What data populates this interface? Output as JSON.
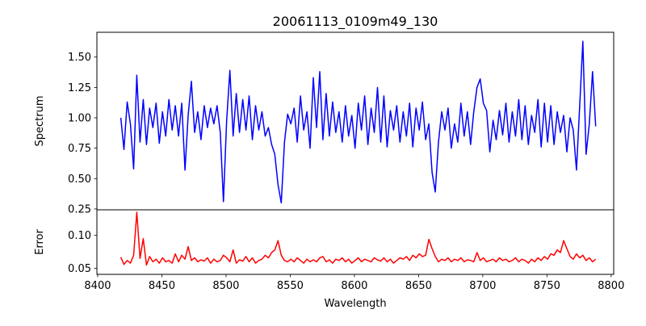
{
  "chart_data": [
    {
      "type": "line",
      "title": "20061113_0109m49_130",
      "ylabel": "Spectrum",
      "xlabel": "",
      "xlim": [
        8399.4,
        8802
      ],
      "ylim": [
        0.243,
        1.704
      ],
      "yticks": [
        0.25,
        0.5,
        0.75,
        1.0,
        1.25,
        1.5
      ],
      "ytick_labels": [
        "0.25",
        "0.50",
        "0.75",
        "1.00",
        "1.25",
        "1.50"
      ],
      "grid": false,
      "series": [
        {
          "name": "spectrum",
          "color": "#0000ff",
          "x_start": 8418,
          "x_step": 2.5,
          "values": [
            1.0,
            0.74,
            1.13,
            0.95,
            0.58,
            1.35,
            0.8,
            1.15,
            0.78,
            1.08,
            0.92,
            1.12,
            0.79,
            1.05,
            0.85,
            1.15,
            0.9,
            1.1,
            0.85,
            1.12,
            0.57,
            1.02,
            1.3,
            0.88,
            1.05,
            0.82,
            1.1,
            0.92,
            1.08,
            0.95,
            1.1,
            0.88,
            0.31,
            0.98,
            1.39,
            0.85,
            1.2,
            0.88,
            1.15,
            0.9,
            1.18,
            0.82,
            1.1,
            0.9,
            1.05,
            0.85,
            0.92,
            0.78,
            0.7,
            0.45,
            0.3,
            0.8,
            1.03,
            0.95,
            1.08,
            0.8,
            1.18,
            0.9,
            1.05,
            0.75,
            1.33,
            0.92,
            1.38,
            0.82,
            1.2,
            0.85,
            1.13,
            0.88,
            1.05,
            0.8,
            1.1,
            0.85,
            1.02,
            0.75,
            1.12,
            0.9,
            1.18,
            0.78,
            1.08,
            0.88,
            1.25,
            0.8,
            1.18,
            0.76,
            1.06,
            0.9,
            1.1,
            0.8,
            1.05,
            0.85,
            1.12,
            0.76,
            1.08,
            0.9,
            1.13,
            0.82,
            0.95,
            0.55,
            0.39,
            0.8,
            1.05,
            0.9,
            1.08,
            0.75,
            0.95,
            0.8,
            1.12,
            0.85,
            1.05,
            0.78,
            1.05,
            1.25,
            1.32,
            1.12,
            1.06,
            0.72,
            0.98,
            0.82,
            1.06,
            0.86,
            1.12,
            0.8,
            1.05,
            0.85,
            1.15,
            0.82,
            1.1,
            0.78,
            1.02,
            0.88,
            1.15,
            0.76,
            1.12,
            0.8,
            1.1,
            0.78,
            1.05,
            0.88,
            1.02,
            0.72,
            1.0,
            0.9,
            0.57,
            1.1,
            1.63,
            0.7,
            0.95,
            1.38,
            0.93
          ]
        }
      ]
    },
    {
      "type": "line",
      "title": "",
      "ylabel": "Error",
      "xlabel": "Wavelength",
      "xlim": [
        8399.4,
        8802
      ],
      "ylim": [
        0.041,
        0.1387
      ],
      "yticks": [
        0.05,
        0.1
      ],
      "ytick_labels": [
        "0.05",
        "0.10"
      ],
      "xticks": [
        8400,
        8450,
        8500,
        8550,
        8600,
        8650,
        8700,
        8750,
        8800
      ],
      "xtick_labels": [
        "8400",
        "8450",
        "8500",
        "8550",
        "8600",
        "8650",
        "8700",
        "8750",
        "8800"
      ],
      "grid": false,
      "series": [
        {
          "name": "error",
          "color": "#ff0000",
          "x_start": 8418,
          "x_step": 2.5,
          "values": [
            0.067,
            0.056,
            0.062,
            0.058,
            0.07,
            0.135,
            0.065,
            0.095,
            0.055,
            0.068,
            0.06,
            0.064,
            0.058,
            0.066,
            0.06,
            0.062,
            0.058,
            0.072,
            0.06,
            0.07,
            0.064,
            0.083,
            0.062,
            0.066,
            0.06,
            0.063,
            0.061,
            0.066,
            0.058,
            0.064,
            0.06,
            0.062,
            0.07,
            0.066,
            0.06,
            0.078,
            0.058,
            0.063,
            0.061,
            0.068,
            0.06,
            0.066,
            0.058,
            0.062,
            0.064,
            0.07,
            0.066,
            0.074,
            0.078,
            0.092,
            0.07,
            0.062,
            0.06,
            0.064,
            0.06,
            0.066,
            0.062,
            0.058,
            0.064,
            0.06,
            0.063,
            0.06,
            0.066,
            0.068,
            0.06,
            0.063,
            0.058,
            0.064,
            0.062,
            0.066,
            0.06,
            0.064,
            0.058,
            0.062,
            0.066,
            0.06,
            0.064,
            0.062,
            0.06,
            0.066,
            0.063,
            0.061,
            0.066,
            0.06,
            0.064,
            0.058,
            0.062,
            0.066,
            0.064,
            0.068,
            0.062,
            0.07,
            0.066,
            0.072,
            0.068,
            0.07,
            0.094,
            0.08,
            0.068,
            0.06,
            0.064,
            0.062,
            0.066,
            0.06,
            0.064,
            0.062,
            0.066,
            0.06,
            0.063,
            0.062,
            0.06,
            0.074,
            0.062,
            0.066,
            0.06,
            0.062,
            0.064,
            0.06,
            0.066,
            0.062,
            0.064,
            0.06,
            0.062,
            0.066,
            0.06,
            0.064,
            0.062,
            0.058,
            0.064,
            0.06,
            0.066,
            0.062,
            0.068,
            0.064,
            0.072,
            0.07,
            0.078,
            0.074,
            0.092,
            0.08,
            0.068,
            0.064,
            0.072,
            0.066,
            0.07,
            0.062,
            0.066,
            0.06,
            0.064
          ]
        }
      ]
    }
  ]
}
